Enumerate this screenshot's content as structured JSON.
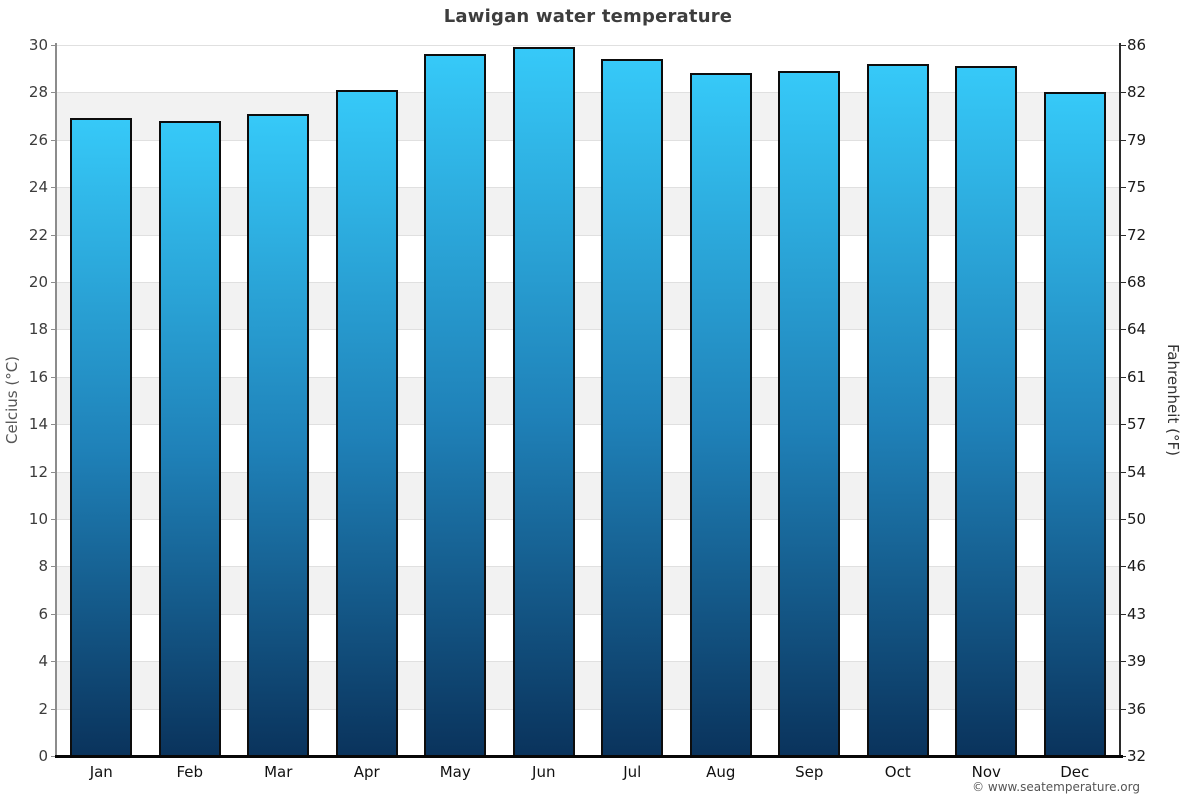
{
  "title": "Lawigan water temperature",
  "footer": {
    "copyright": "© www.seatemperature.org"
  },
  "chart_data": {
    "type": "bar",
    "title": "Lawigan water temperature",
    "categories": [
      "Jan",
      "Feb",
      "Mar",
      "Apr",
      "May",
      "Jun",
      "Jul",
      "Aug",
      "Sep",
      "Oct",
      "Nov",
      "Dec"
    ],
    "series": [
      {
        "name": "Water temperature",
        "unit": "°C",
        "values_celsius": [
          26.9,
          26.8,
          27.1,
          28.1,
          29.6,
          29.9,
          29.4,
          28.8,
          28.9,
          29.2,
          29.1,
          28.0
        ]
      }
    ],
    "ylabel_left": "Celcius (°C)",
    "ylabel_right": "Fahrenheit (°F)",
    "ylim_celsius": [
      0,
      30
    ],
    "yticks_celsius": [
      0,
      2,
      4,
      6,
      8,
      10,
      12,
      14,
      16,
      18,
      20,
      22,
      24,
      26,
      28,
      30
    ],
    "yticks_fahrenheit": [
      32,
      36,
      39,
      43,
      46,
      50,
      54,
      57,
      61,
      64,
      68,
      72,
      75,
      79,
      82,
      86
    ],
    "legend_position": "none",
    "grid": "horizontal gridlines every 2°C with alternating white/gray bands",
    "colors": {
      "bar_gradient_top": "#36c9f8",
      "bar_gradient_mid": "#1f81b8",
      "bar_gradient_bottom": "#0a335c",
      "bar_border": "#0d0d0d",
      "band_fill": "#f2f2f2",
      "gridline": "#e0e0e0",
      "title_text": "#3d3d3d",
      "axis_left_line": "#8c8c8c",
      "axis_right_line": "#2b2b2b",
      "axis_bottom_line": "#070707"
    }
  }
}
